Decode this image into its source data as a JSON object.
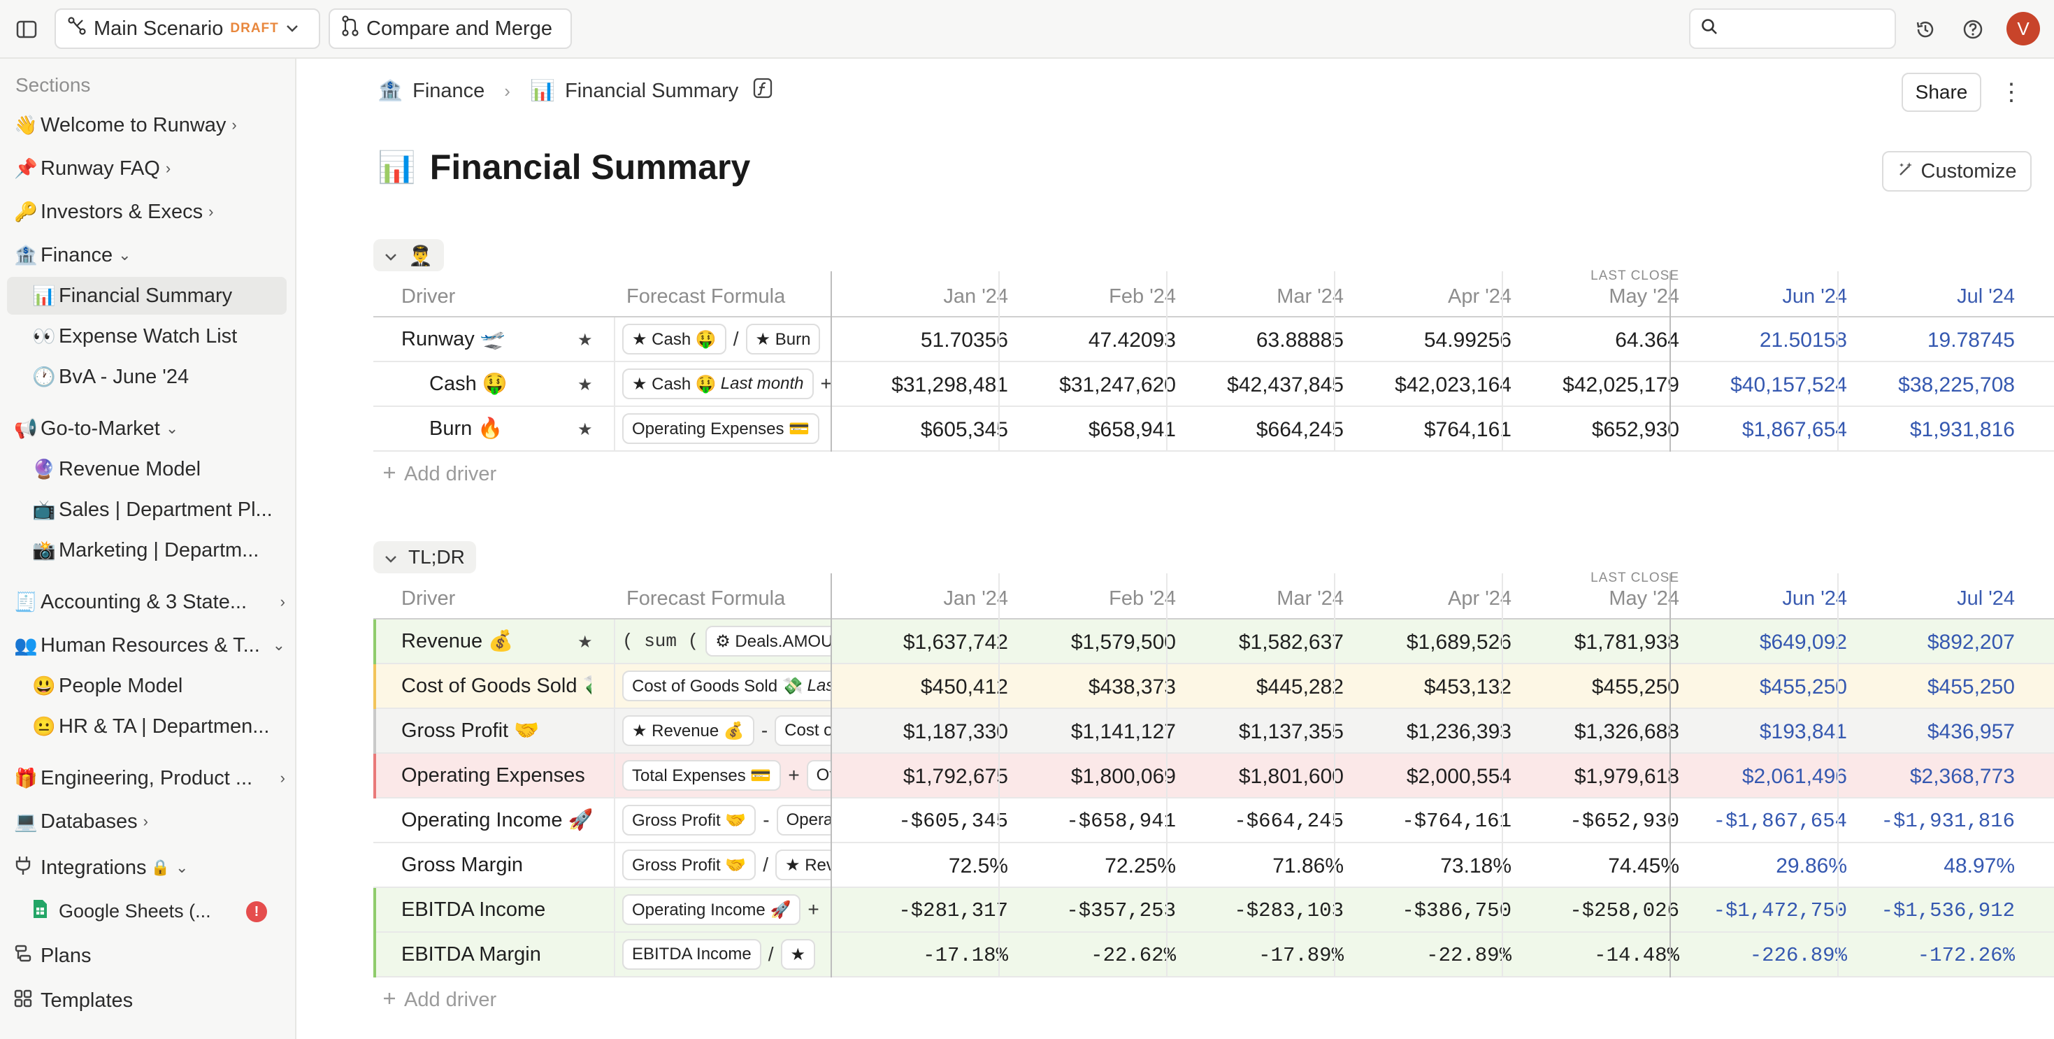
{
  "topbar": {
    "scenario_label": "Main Scenario",
    "scenario_badge": "DRAFT",
    "compare_label": "Compare and Merge",
    "search_placeholder": "",
    "avatar_initial": "V"
  },
  "sidebar": {
    "heading": "Sections",
    "items": [
      {
        "emoji": "👋",
        "label": "Welcome to Runway",
        "chevron": "›"
      },
      {
        "emoji": "📌",
        "label": "Runway FAQ",
        "chevron": "›"
      },
      {
        "emoji": "🔑",
        "label": "Investors & Execs",
        "chevron": "›"
      },
      {
        "emoji": "🏦",
        "label": "Finance",
        "chevron": "⌄"
      },
      {
        "emoji": "📊",
        "label": "Financial Summary"
      },
      {
        "emoji": "👀",
        "label": "Expense Watch List"
      },
      {
        "emoji": "🕐",
        "label": "BvA - June '24"
      },
      {
        "emoji": "📢",
        "label": "Go-to-Market",
        "chevron": "⌄"
      },
      {
        "emoji": "🔮",
        "label": "Revenue Model"
      },
      {
        "emoji": "📺",
        "label": "Sales | Department Pl..."
      },
      {
        "emoji": "📸",
        "label": "Marketing | Departm..."
      },
      {
        "emoji": "🧾",
        "label": "Accounting & 3 State...",
        "chevron": "›"
      },
      {
        "emoji": "👥",
        "label": "Human Resources & T...",
        "chevron": "⌄"
      },
      {
        "emoji": "😃",
        "label": "People Model"
      },
      {
        "emoji": "😐",
        "label": "HR & TA | Departmen..."
      },
      {
        "emoji": "🎁",
        "label": "Engineering, Product ...",
        "chevron": "›"
      },
      {
        "emoji": "💻",
        "label": "Databases",
        "chevron": "›"
      },
      {
        "label": "Integrations",
        "lock": "🔒",
        "chevron": "⌄"
      },
      {
        "label": "Google Sheets (...",
        "error": "!"
      },
      {
        "label": "Plans"
      },
      {
        "label": "Templates"
      }
    ]
  },
  "breadcrumb": {
    "parent_emoji": "🏦",
    "parent": "Finance",
    "sep": "›",
    "current_emoji": "📊",
    "current": "Financial Summary"
  },
  "header": {
    "share_label": "Share",
    "kebab": "⋮",
    "title_emoji": "📊",
    "title": "Financial Summary",
    "customize_label": "Customize"
  },
  "columns": {
    "driver": "Driver",
    "formula": "Forecast Formula",
    "months": [
      "Jan '24",
      "Feb '24",
      "Mar '24",
      "Apr '24",
      "May '24",
      "Jun '24",
      "Jul '24"
    ],
    "last_close_label": "LAST CLOSE"
  },
  "block1": {
    "label_emoji": "👨‍✈️",
    "add_driver": "Add driver",
    "rows": [
      {
        "name": "Runway 🛫",
        "star": "★",
        "indent": false,
        "formula": [
          {
            "chip": "★ Cash 🤑"
          },
          {
            "op": "/"
          },
          {
            "chip": "★ Burn"
          }
        ],
        "values": [
          "51.70356",
          "47.42093",
          "63.88885",
          "54.99256",
          "64.364",
          "21.50158",
          "19.78745"
        ]
      },
      {
        "name": "Cash 🤑",
        "star": "★",
        "indent": true,
        "formula": [
          {
            "chip": "★ Cash 🤑",
            "italic": "Last month"
          },
          {
            "op": "+"
          }
        ],
        "values": [
          "$31,298,481",
          "$31,247,620",
          "$42,437,845",
          "$42,023,164",
          "$42,025,179",
          "$40,157,524",
          "$38,225,708"
        ]
      },
      {
        "name": "Burn 🔥",
        "star": "★",
        "indent": true,
        "formula": [
          {
            "chip": "Operating Expenses 💳"
          }
        ],
        "values": [
          "$605,345",
          "$658,941",
          "$664,245",
          "$764,161",
          "$652,930",
          "$1,867,654",
          "$1,931,816"
        ]
      }
    ]
  },
  "block2": {
    "label": "TL;DR",
    "add_driver": "Add driver",
    "rows": [
      {
        "name": "Revenue 💰",
        "star": "★",
        "bg": "green",
        "formula": [
          {
            "op": "( sum ("
          },
          {
            "chip": "⚙ Deals.AMOUNT"
          }
        ],
        "values": [
          "$1,637,742",
          "$1,579,500",
          "$1,582,637",
          "$1,689,526",
          "$1,781,938",
          "$649,092",
          "$892,207"
        ]
      },
      {
        "name": "Cost of Goods Sold 💸",
        "bg": "yellow",
        "formula": [
          {
            "chip": "Cost of Goods Sold 💸",
            "italic": "Last month"
          }
        ],
        "values": [
          "$450,412",
          "$438,373",
          "$445,282",
          "$453,132",
          "$455,250",
          "$455,250",
          "$455,250"
        ]
      },
      {
        "name": "Gross Profit 🤝",
        "bg": "gray",
        "formula": [
          {
            "chip": "★ Revenue 💰"
          },
          {
            "op": "-"
          },
          {
            "chip": "Cost of Goods Sold"
          }
        ],
        "values": [
          "$1,187,330",
          "$1,141,127",
          "$1,137,355",
          "$1,236,393",
          "$1,326,688",
          "$193,841",
          "$436,957"
        ]
      },
      {
        "name": "Operating Expenses 💳",
        "bg": "red",
        "formula": [
          {
            "chip": "Total Expenses 💳"
          },
          {
            "op": "+"
          },
          {
            "chip": "Other"
          }
        ],
        "values": [
          "$1,792,675",
          "$1,800,069",
          "$1,801,600",
          "$2,000,554",
          "$1,979,618",
          "$2,061,496",
          "$2,368,773"
        ]
      },
      {
        "name": "Operating Income 🚀",
        "bg": "none",
        "formula": [
          {
            "chip": "Gross Profit 🤝"
          },
          {
            "op": "-"
          },
          {
            "chip": "Operating Expenses"
          }
        ],
        "mono": true,
        "values": [
          "-$605,345",
          "-$658,941",
          "-$664,245",
          "-$764,161",
          "-$652,930",
          "-$1,867,654",
          "-$1,931,816"
        ]
      },
      {
        "name": "Gross Margin",
        "bg": "none",
        "formula": [
          {
            "chip": "Gross Profit 🤝"
          },
          {
            "op": "/"
          },
          {
            "chip": "★ Revenue"
          }
        ],
        "values": [
          "72.5%",
          "72.25%",
          "71.86%",
          "73.18%",
          "74.45%",
          "29.86%",
          "48.97%"
        ]
      },
      {
        "name": "EBITDA Income",
        "bg": "green",
        "formula": [
          {
            "chip": "Operating Income 🚀"
          },
          {
            "op": "+"
          }
        ],
        "mono": true,
        "values": [
          "-$281,317",
          "-$357,253",
          "-$283,103",
          "-$386,750",
          "-$258,026",
          "-$1,472,750",
          "-$1,536,912"
        ]
      },
      {
        "name": "EBITDA Margin",
        "bg": "green",
        "formula": [
          {
            "chip": "EBITDA Income"
          },
          {
            "op": "/"
          },
          {
            "chip": "★"
          }
        ],
        "mono": true,
        "values": [
          "-17.18%",
          "-22.62%",
          "-17.89%",
          "-22.89%",
          "-14.48%",
          "-226.89%",
          "-172.26%"
        ]
      }
    ]
  },
  "colors": {
    "future_value": "#3558b0",
    "draft_badge": "#e8873d",
    "avatar": "#c8442a",
    "error": "#e54d4d"
  }
}
